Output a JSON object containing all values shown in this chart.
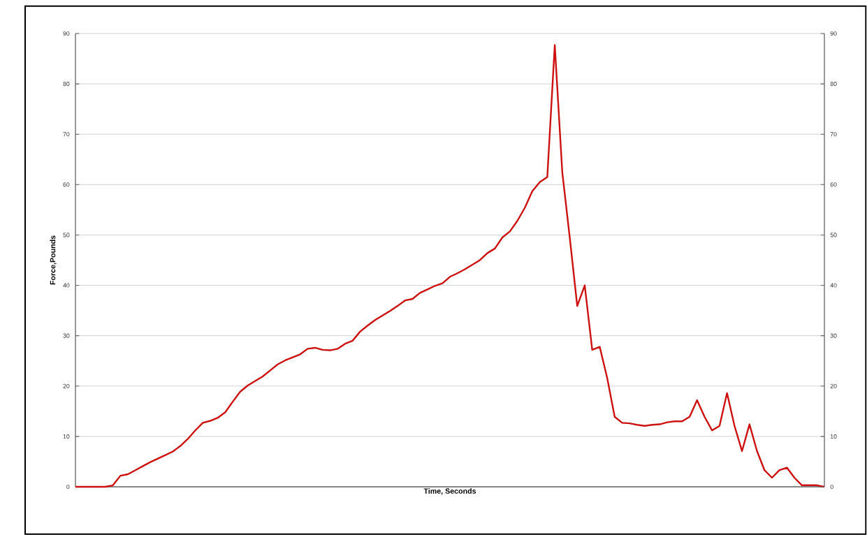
{
  "chart_data": {
    "type": "line",
    "xlabel": "Time, Seconds",
    "ylabel": "Force,Pounds",
    "categories": [
      null,
      null,
      null,
      null,
      null,
      null,
      null,
      null,
      null,
      null,
      null,
      null,
      null,
      null,
      null,
      null,
      null,
      null,
      null,
      null,
      null,
      null,
      null,
      null,
      null,
      null,
      null,
      null,
      null,
      null,
      null,
      null,
      null,
      null,
      null,
      null,
      null,
      null,
      null,
      null,
      null,
      null,
      null,
      null,
      null,
      null,
      null,
      null,
      null,
      null,
      null,
      null,
      null,
      null,
      null,
      null,
      null,
      null,
      null,
      null,
      null,
      null,
      null,
      null,
      null,
      null,
      null,
      null,
      null,
      null,
      null,
      null,
      null,
      null,
      null,
      null,
      null,
      null,
      null,
      null,
      null,
      null,
      null,
      null,
      null,
      null,
      null,
      null,
      null,
      null,
      null,
      null,
      null,
      null,
      null,
      null,
      null,
      null,
      null,
      null,
      null
    ],
    "series": [
      {
        "color": "#cc1111",
        "values": [
          0,
          0,
          0,
          0,
          0,
          0.3,
          2.2,
          2.5,
          3.3,
          4.1,
          4.9,
          5.6,
          6.3,
          7.0,
          8.1,
          9.5,
          11.2,
          12.7,
          13.1,
          13.7,
          14.8,
          16.9,
          18.9,
          20.1,
          21.0,
          21.9,
          23.1,
          24.3,
          25.1,
          25.7,
          26.3,
          27.4,
          27.6,
          27.2,
          27.1,
          27.4,
          28.4,
          29.0,
          30.8,
          32.0,
          33.1,
          34.0,
          34.9,
          35.9,
          37.0,
          37.3,
          38.5,
          39.2,
          39.9,
          40.4,
          41.7,
          42.4,
          43.2,
          44.1,
          45.0,
          46.4,
          47.3,
          49.5,
          50.7,
          52.8,
          55.4,
          58.7,
          60.5,
          61.5,
          87.7,
          62.5,
          49.5,
          35.9,
          40.0,
          27.2,
          27.8,
          21.6,
          13.9,
          12.7,
          12.6,
          12.3,
          12.1,
          12.3,
          12.4,
          12.8,
          13.0,
          13.0,
          13.9,
          17.2,
          13.9,
          11.2,
          12.1,
          18.6,
          12.1,
          7.1,
          12.4,
          7.1,
          3.3,
          1.8,
          3.3,
          3.8,
          1.8,
          0.3,
          0.3,
          0.3,
          0
        ]
      }
    ],
    "ylim": [
      0,
      90
    ],
    "yticks": [
      0,
      10,
      20,
      30,
      40,
      50,
      60,
      70,
      80,
      90
    ],
    "y2lim": [
      0,
      90
    ],
    "y2ticks": [
      0,
      10,
      20,
      30,
      40,
      50,
      60,
      70,
      80,
      90
    ],
    "grid": "y",
    "marker": "none",
    "line_style": "solid"
  }
}
